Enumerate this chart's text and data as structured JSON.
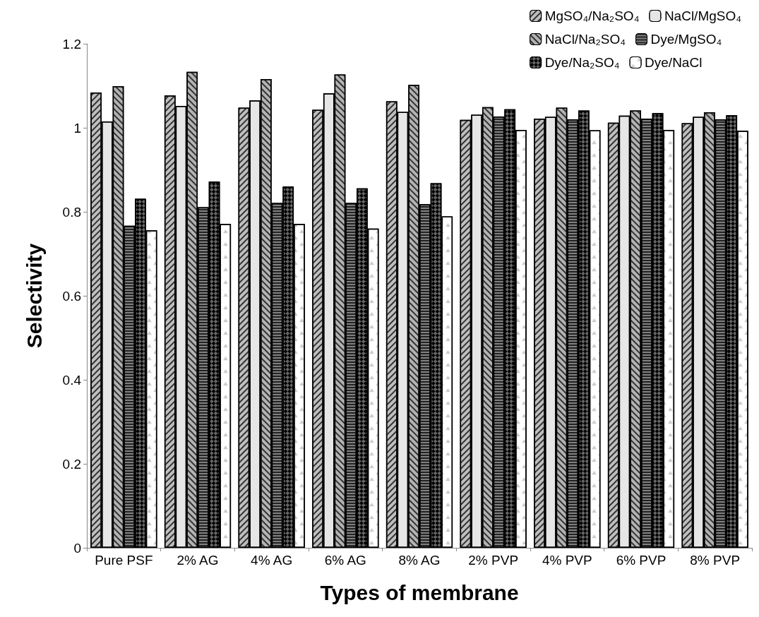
{
  "chart_data": {
    "type": "bar",
    "xlabel": "Types of membrane",
    "ylabel": "Selectivity",
    "categories": [
      "Pure PSF",
      "2% AG",
      "4% AG",
      "6% AG",
      "8% AG",
      "2% PVP",
      "4% PVP",
      "6% PVP",
      "8% PVP"
    ],
    "series": [
      {
        "name": "MgSO₄/Na₂SO₄",
        "color": "#bfbfbf",
        "values": [
          1.084,
          1.077,
          1.048,
          1.043,
          1.063,
          1.019,
          1.022,
          1.012,
          1.011
        ]
      },
      {
        "name": "NaCl/MgSO₄",
        "color": "#e6e6e6",
        "values": [
          1.015,
          1.052,
          1.065,
          1.082,
          1.038,
          1.031,
          1.026,
          1.029,
          1.026
        ]
      },
      {
        "name": "NaCl/Na₂SO₄",
        "color": "#b3b3b3",
        "values": [
          1.099,
          1.133,
          1.116,
          1.127,
          1.102,
          1.049,
          1.048,
          1.041,
          1.037
        ]
      },
      {
        "name": "Dye/MgSO₄",
        "color": "#808080",
        "values": [
          0.767,
          0.811,
          0.821,
          0.821,
          0.818,
          1.027,
          1.02,
          1.022,
          1.02
        ]
      },
      {
        "name": "Dye/Na₂SO₄",
        "color": "#666666",
        "values": [
          0.831,
          0.872,
          0.86,
          0.856,
          0.868,
          1.044,
          1.041,
          1.035,
          1.03
        ]
      },
      {
        "name": "Dye/NaCl",
        "color": "#ffffff",
        "values": [
          0.756,
          0.771,
          0.771,
          0.76,
          0.789,
          0.995,
          0.994,
          0.995,
          0.993
        ]
      }
    ],
    "ylim": [
      0,
      1.2
    ],
    "yticks": [
      0,
      0.2,
      0.4,
      0.6,
      0.8,
      1,
      1.2
    ],
    "grid": false,
    "legend": "top right"
  }
}
